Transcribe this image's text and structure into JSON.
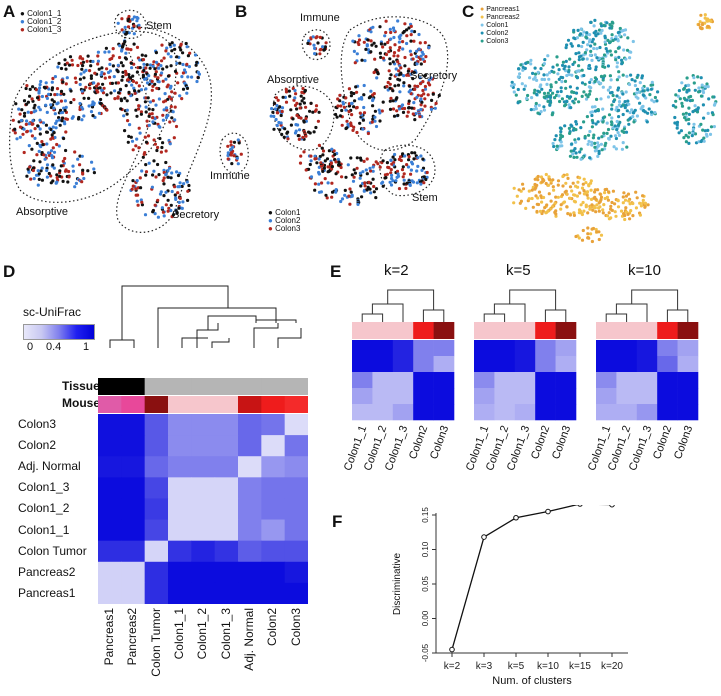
{
  "panels": {
    "a": {
      "letter": "A",
      "legend": [
        "Colon1_1",
        "Colon1_2",
        "Colon1_3"
      ],
      "legend_colors": [
        "#111111",
        "#3b7fd6",
        "#b2271f"
      ],
      "clusters": [
        "Stem",
        "Absorptive",
        "Secretory",
        "Immune"
      ]
    },
    "b": {
      "letter": "B",
      "legend": [
        "Colon1",
        "Colon2",
        "Colon3"
      ],
      "legend_colors": [
        "#111111",
        "#3b7fd6",
        "#b2271f"
      ],
      "clusters": [
        "Immune",
        "Absorptive",
        "Secretory",
        "Stem"
      ]
    },
    "c": {
      "letter": "C",
      "legend": [
        "Pancreas1",
        "Pancreas2",
        "Colon1",
        "Colon2",
        "Colon3"
      ],
      "legend_colors": [
        "#e8a23a",
        "#f2c14a",
        "#7ec4e8",
        "#1e8fb0",
        "#2a9e8c"
      ]
    },
    "d": {
      "letter": "D",
      "colorbar_title": "sc-UniFrac",
      "colorbar_ticks": [
        "0",
        "0.4",
        "1"
      ],
      "tissue_label": "Tissue",
      "mouse_label": "Mouse",
      "row_labels": [
        "Colon3",
        "Colon2",
        "Adj. Normal",
        "Colon1_3",
        "Colon1_2",
        "Colon1_1",
        "Colon Tumor",
        "Pancreas2",
        "Pancreas1"
      ],
      "col_labels": [
        "Pancreas1",
        "Pancreas2",
        "Colon Tumor",
        "Colon1_1",
        "Colon1_2",
        "Colon1_3",
        "Adj. Normal",
        "Colon2",
        "Colon3"
      ],
      "tissue_colors": [
        "#000000",
        "#000000",
        "#b5b5b5",
        "#b5b5b5",
        "#b5b5b5",
        "#b5b5b5",
        "#b5b5b5",
        "#b5b5b5",
        "#b5b5b5"
      ],
      "mouse_colors": [
        "#e05ba8",
        "#e8489a",
        "#8a1010",
        "#f6c6cc",
        "#f6c6cc",
        "#f6c6cc",
        "#c81414",
        "#ef1c1c",
        "#f42a2a"
      ],
      "matrix": [
        [
          0.93,
          0.93,
          0.62,
          0.4,
          0.4,
          0.4,
          0.55,
          0.5,
          0.05
        ],
        [
          0.93,
          0.93,
          0.62,
          0.4,
          0.4,
          0.4,
          0.55,
          0.05,
          0.5
        ],
        [
          0.9,
          0.9,
          0.55,
          0.45,
          0.45,
          0.45,
          0.05,
          0.35,
          0.4
        ],
        [
          0.95,
          0.95,
          0.7,
          0.08,
          0.08,
          0.08,
          0.45,
          0.5,
          0.5
        ],
        [
          0.95,
          0.95,
          0.75,
          0.08,
          0.08,
          0.08,
          0.45,
          0.5,
          0.5
        ],
        [
          0.95,
          0.95,
          0.7,
          0.08,
          0.08,
          0.08,
          0.45,
          0.35,
          0.5
        ],
        [
          0.8,
          0.8,
          0.08,
          0.78,
          0.85,
          0.78,
          0.6,
          0.65,
          0.65
        ],
        [
          0.1,
          0.1,
          0.8,
          0.95,
          0.95,
          0.95,
          0.95,
          0.95,
          0.9
        ],
        [
          0.1,
          0.1,
          0.8,
          0.95,
          0.95,
          0.95,
          0.95,
          0.95,
          0.95
        ]
      ]
    },
    "e": {
      "letter": "E",
      "titles": [
        "k=2",
        "k=5",
        "k=10"
      ],
      "labels": [
        "Colon1_1",
        "Colon1_2",
        "Colon1_3",
        "Colon2",
        "Colon3"
      ],
      "top_colors": [
        "#f6c6cc",
        "#f6c6cc",
        "#f6c6cc",
        "#ee1c1c",
        "#8a1010"
      ],
      "matrices": [
        [
          [
            0.95,
            0.95,
            0.85,
            0.45,
            0.45
          ],
          [
            0.95,
            0.95,
            0.85,
            0.45,
            0.25
          ],
          [
            0.45,
            0.2,
            0.2,
            0.95,
            0.95
          ],
          [
            0.3,
            0.2,
            0.2,
            0.95,
            0.95
          ],
          [
            0.2,
            0.2,
            0.3,
            0.95,
            0.95
          ]
        ],
        [
          [
            0.95,
            0.95,
            0.9,
            0.45,
            0.3
          ],
          [
            0.95,
            0.95,
            0.9,
            0.45,
            0.25
          ],
          [
            0.4,
            0.2,
            0.2,
            0.95,
            0.95
          ],
          [
            0.3,
            0.2,
            0.2,
            0.95,
            0.95
          ],
          [
            0.25,
            0.2,
            0.25,
            0.95,
            0.95
          ]
        ],
        [
          [
            0.95,
            0.95,
            0.9,
            0.45,
            0.3
          ],
          [
            0.95,
            0.95,
            0.9,
            0.55,
            0.25
          ],
          [
            0.4,
            0.2,
            0.2,
            0.95,
            0.95
          ],
          [
            0.3,
            0.2,
            0.2,
            0.95,
            0.95
          ],
          [
            0.25,
            0.25,
            0.35,
            0.95,
            0.95
          ]
        ]
      ]
    }
  },
  "chart_data": {
    "type": "line",
    "panel": "F",
    "categories": [
      "k=2",
      "k=3",
      "k=5",
      "k=10",
      "k=15",
      "k=20"
    ],
    "values": [
      -0.045,
      0.118,
      0.146,
      0.155,
      0.166,
      0.165
    ],
    "xlabel": "Num. of clusters",
    "ylabel": "Discriminative",
    "ylim": [
      -0.05,
      0.15
    ],
    "yticks": [
      "-0.05",
      "0.00",
      "0.05",
      "0.10",
      "0.15"
    ],
    "ytick_values": [
      -0.05,
      0.0,
      0.05,
      0.1,
      0.15
    ]
  }
}
